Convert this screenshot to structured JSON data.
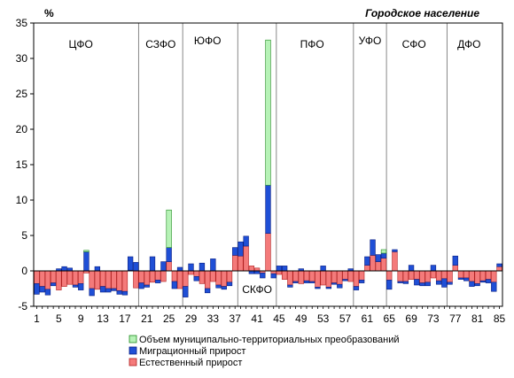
{
  "chart_data": {
    "type": "bar",
    "stacked": true,
    "title": "Городское население",
    "ylabel": "%",
    "ylim": [
      -5,
      35
    ],
    "yticks": [
      -5,
      0,
      5,
      10,
      15,
      20,
      25,
      30,
      35
    ],
    "xlim": [
      1,
      85
    ],
    "xticks": [
      1,
      5,
      9,
      13,
      17,
      21,
      25,
      29,
      33,
      37,
      41,
      45,
      49,
      53,
      57,
      61,
      65,
      69,
      73,
      77,
      81,
      85
    ],
    "grid": false,
    "legend_position": "bottom",
    "district_dividers": [
      19.5,
      27.5,
      37.5,
      44.5,
      58.5,
      64.5,
      75.5
    ],
    "districts": [
      {
        "label": "ЦФО",
        "x": 9,
        "y": 32
      },
      {
        "label": "СЗФО",
        "x": 23.5,
        "y": 32
      },
      {
        "label": "ЮФО",
        "x": 32,
        "y": 32.5
      },
      {
        "label": "СКФО",
        "x": 41,
        "y": -2.6
      },
      {
        "label": "ПФО",
        "x": 51,
        "y": 32
      },
      {
        "label": "УФО",
        "x": 61.5,
        "y": 32.5
      },
      {
        "label": "СФО",
        "x": 69.5,
        "y": 32
      },
      {
        "label": "ДФО",
        "x": 79.5,
        "y": 32
      }
    ],
    "x": [
      1,
      2,
      3,
      4,
      5,
      6,
      7,
      8,
      9,
      10,
      11,
      12,
      13,
      14,
      15,
      16,
      17,
      18,
      19,
      20,
      21,
      22,
      23,
      24,
      25,
      26,
      27,
      28,
      29,
      30,
      31,
      32,
      33,
      34,
      35,
      36,
      37,
      38,
      39,
      40,
      41,
      42,
      43,
      44,
      45,
      46,
      47,
      48,
      49,
      50,
      51,
      52,
      53,
      54,
      55,
      56,
      57,
      58,
      59,
      60,
      61,
      62,
      63,
      64,
      65,
      66,
      67,
      68,
      69,
      70,
      71,
      72,
      73,
      74,
      75,
      76,
      77,
      78,
      79,
      80,
      81,
      82,
      83,
      84,
      85
    ],
    "series": [
      {
        "name": "Объем муниципально-территориальных преобразований",
        "color": "#b6f2b6",
        "stroke": "#1e8a1e",
        "values": [
          0,
          0,
          0,
          0,
          0,
          0,
          0,
          0,
          0,
          0.2,
          0,
          0,
          0,
          0,
          0,
          0,
          0,
          0,
          0,
          0,
          0,
          0,
          0,
          0,
          5.3,
          0,
          0,
          0,
          0,
          0,
          0,
          0,
          0,
          0,
          0,
          0,
          0,
          0,
          0,
          0,
          0,
          0,
          20.5,
          0,
          0,
          0,
          0,
          0,
          0,
          0,
          0,
          0,
          0,
          0,
          0,
          0,
          0,
          0,
          0,
          0,
          0,
          0,
          0,
          0.5,
          0,
          0,
          0,
          0,
          0,
          0,
          0,
          0,
          0,
          0,
          0,
          0,
          0,
          0,
          0,
          0,
          0,
          0,
          0,
          0,
          0
        ]
      },
      {
        "name": "Миграционный прирост",
        "color": "#1f4fd6",
        "stroke": "#0a1f80",
        "values": [
          -1.5,
          -0.8,
          -0.8,
          -0.4,
          0.3,
          0.6,
          0.4,
          -0.3,
          -0.9,
          2.7,
          -1.0,
          0.6,
          -0.8,
          -0.5,
          -0.3,
          -0.5,
          -0.5,
          1.9,
          1.2,
          -0.8,
          -0.3,
          2.0,
          -0.4,
          1.3,
          2.0,
          -1.0,
          0.5,
          -1.5,
          1.0,
          -0.6,
          1.1,
          -0.6,
          1.7,
          -0.4,
          -0.4,
          -0.5,
          1.1,
          2.0,
          1.4,
          -0.4,
          -0.4,
          -0.7,
          6.8,
          -0.6,
          0.7,
          0.7,
          -0.3,
          -0.2,
          0.3,
          -0.3,
          -0.2,
          -0.2,
          0.7,
          -0.2,
          -0.2,
          -0.5,
          -0.2,
          0.3,
          -0.5,
          -0.4,
          1.2,
          2.2,
          1.0,
          0.7,
          -1.3,
          0.3,
          -0.2,
          -0.3,
          0.8,
          -0.8,
          -0.4,
          -0.5,
          0.8,
          -0.5,
          -1.2,
          -0.3,
          1.3,
          -0.2,
          -0.4,
          -0.7,
          -0.3,
          -0.2,
          -0.5,
          -1.3,
          0.4
        ]
      },
      {
        "name": "Естественный прирост",
        "color": "#f47a7a",
        "stroke": "#b02020",
        "values": [
          -1.8,
          -2.2,
          -2.6,
          -1.7,
          -2.7,
          -2.2,
          -1.9,
          -2.0,
          -1.8,
          -0.3,
          -2.5,
          -2.6,
          -2.2,
          -2.5,
          -2.5,
          -2.8,
          -2.9,
          0.1,
          -2.4,
          -1.7,
          -2.0,
          -1.6,
          -1.3,
          -1.5,
          1.3,
          -1.5,
          -2.5,
          -2.2,
          -0.5,
          -0.8,
          -1.8,
          -2.5,
          -1.5,
          -2.0,
          -2.2,
          -1.6,
          2.2,
          2.1,
          3.5,
          0.7,
          0.4,
          -0.3,
          5.3,
          -0.4,
          -0.5,
          -1.2,
          -2.0,
          -1.5,
          -1.8,
          -1.4,
          -1.5,
          -2.3,
          -2.0,
          -2.3,
          -1.7,
          -1.9,
          -1.2,
          -1.5,
          -2.2,
          -1.3,
          0.8,
          2.2,
          1.3,
          1.8,
          -1.3,
          2.7,
          -1.5,
          -1.5,
          -1.2,
          -1.2,
          -1.7,
          -1.6,
          -1.0,
          -1.4,
          -1.1,
          -1.6,
          0.8,
          -1.0,
          -1.0,
          -1.5,
          -1.8,
          -1.4,
          -1.2,
          -1.6,
          0.6
        ]
      }
    ]
  }
}
